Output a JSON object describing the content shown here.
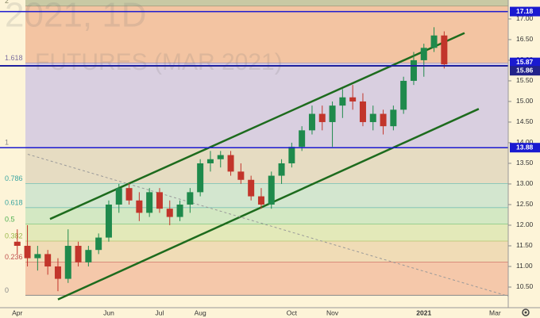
{
  "chart_data": {
    "type": "candlestick",
    "title": "2021, 1D",
    "subtitle": "FUTURES (MAR 2021)",
    "categories": [
      "Apr",
      null,
      null,
      null,
      null,
      null,
      null,
      null,
      null,
      "Jun",
      null,
      null,
      null,
      null,
      "Jul",
      null,
      null,
      null,
      "Aug",
      null,
      null,
      null,
      null,
      null,
      null,
      null,
      null,
      "Oct",
      null,
      null,
      null,
      "Nov",
      null,
      null,
      null,
      null,
      null,
      null,
      null,
      null,
      "2021",
      null,
      null,
      null,
      null,
      null,
      null,
      "Mar"
    ],
    "label_index": [
      1,
      9,
      14,
      18,
      27,
      31,
      40,
      47
    ],
    "xlim": [
      -1.7,
      48.3
    ],
    "ylim": [
      10.0,
      17.46
    ],
    "yticks": [
      {
        "value": 10.5,
        "label": "10.50"
      },
      {
        "value": 11.0,
        "label": "11.00"
      },
      {
        "value": 11.5,
        "label": "11.50"
      },
      {
        "value": 12.0,
        "label": "12.00"
      },
      {
        "value": 12.5,
        "label": "12.50"
      },
      {
        "value": 13.0,
        "label": "13.00"
      },
      {
        "value": 13.5,
        "label": "13.50"
      },
      {
        "value": 14.0,
        "label": "14.00"
      },
      {
        "value": 14.5,
        "label": "14.50"
      },
      {
        "value": 15.0,
        "label": "15.00"
      },
      {
        "value": 15.5,
        "label": "15.50"
      },
      {
        "value": 16.0,
        "label": "16.00"
      },
      {
        "value": 16.5,
        "label": "16.50"
      },
      {
        "value": 17.0,
        "label": "17.00"
      }
    ],
    "up_color": "#1f8a4c",
    "down_color": "#c2352b",
    "open": [
      11.6,
      11.5,
      11.2,
      11.3,
      11.0,
      10.7,
      11.5,
      11.1,
      11.4,
      11.7,
      12.5,
      12.9,
      12.6,
      12.3,
      12.8,
      12.4,
      12.2,
      12.5,
      12.8,
      13.5,
      13.6,
      13.7,
      13.3,
      13.1,
      12.7,
      12.5,
      13.2,
      13.5,
      13.9,
      14.3,
      14.7,
      14.5,
      14.9,
      15.1,
      15.0,
      14.5,
      14.7,
      14.4,
      14.8,
      15.5,
      16.0,
      16.3,
      16.6,
      null,
      null,
      null,
      null,
      null
    ],
    "high": [
      11.9,
      12.0,
      11.5,
      11.4,
      11.2,
      11.9,
      11.6,
      11.5,
      11.8,
      12.6,
      13.0,
      13.0,
      12.8,
      12.9,
      12.9,
      12.6,
      12.6,
      12.9,
      13.6,
      13.8,
      13.8,
      13.8,
      13.5,
      13.2,
      12.9,
      13.3,
      13.6,
      14.0,
      14.4,
      14.9,
      14.9,
      15.0,
      15.3,
      15.4,
      15.2,
      14.9,
      14.8,
      14.9,
      15.6,
      16.2,
      16.4,
      16.8,
      16.7,
      null,
      null,
      null,
      null,
      null
    ],
    "low": [
      11.3,
      11.0,
      10.9,
      10.8,
      10.4,
      10.6,
      11.0,
      11.0,
      11.3,
      11.6,
      12.3,
      12.5,
      12.1,
      12.2,
      12.3,
      12.0,
      12.1,
      12.3,
      12.7,
      13.3,
      13.4,
      13.2,
      13.0,
      12.6,
      12.4,
      12.4,
      13.0,
      13.4,
      13.8,
      14.2,
      14.3,
      13.9,
      14.6,
      14.8,
      14.4,
      14.3,
      14.2,
      14.3,
      14.7,
      15.4,
      15.6,
      16.2,
      15.8,
      null,
      null,
      null,
      null,
      null
    ],
    "close": [
      11.5,
      11.2,
      11.3,
      11.0,
      10.7,
      11.5,
      11.1,
      11.4,
      11.7,
      12.5,
      12.9,
      12.6,
      12.3,
      12.8,
      12.4,
      12.2,
      12.5,
      12.8,
      13.5,
      13.6,
      13.7,
      13.3,
      13.1,
      12.7,
      12.5,
      13.2,
      13.5,
      13.9,
      14.3,
      14.7,
      14.5,
      14.9,
      15.1,
      15.0,
      14.5,
      14.7,
      14.4,
      14.8,
      15.5,
      16.0,
      16.3,
      16.6,
      15.9,
      null,
      null,
      null,
      null,
      null
    ],
    "fib_levels": [
      {
        "ratio": 2,
        "price": 17.31,
        "color": "#8a8a6a",
        "fill": "#c8c9a4"
      },
      {
        "ratio": 1.618,
        "price": 15.93,
        "color": "#7d6fa0",
        "fill": "#f3c4a2"
      },
      {
        "ratio": 1,
        "price": 13.88,
        "color": "#888888",
        "fill": "#d9cfe0"
      },
      {
        "ratio": 0.786,
        "price": 13.01,
        "color": "#3aa5a0",
        "fill": "#e6dcc2"
      },
      {
        "ratio": 0.618,
        "price": 12.42,
        "color": "#3aa5a0",
        "fill": "#d3e6cf"
      },
      {
        "ratio": 0.5,
        "price": 12.02,
        "color": "#4caf50",
        "fill": "#d3e8c3"
      },
      {
        "ratio": 0.382,
        "price": 11.61,
        "color": "#9ab84a",
        "fill": "#e3e9b9"
      },
      {
        "ratio": 0.236,
        "price": 11.1,
        "color": "#c0504d",
        "fill": "#f0dcb6"
      },
      {
        "ratio": 0,
        "price": 10.3,
        "color": "#888888",
        "fill": "#f5c8aa"
      }
    ],
    "hlines": [
      {
        "price": 17.18,
        "color": "#1a1ad0"
      },
      {
        "price": 15.87,
        "color": "#1a1ad0"
      },
      {
        "price": 15.86,
        "color": "#23238a"
      },
      {
        "price": 13.88,
        "color": "#1a1ad0"
      }
    ],
    "trendlines": [
      {
        "color": "#1d6b1d",
        "start": [
          3.22,
          12.15
        ],
        "end": [
          44.0,
          16.66
        ]
      },
      {
        "color": "#1d6b1d",
        "start": [
          4.0,
          10.2
        ],
        "end": [
          45.4,
          14.82
        ]
      },
      {
        "color": "#999999",
        "dashed": true,
        "start": [
          1.03,
          13.72
        ],
        "end": [
          48.3,
          10.28
        ]
      }
    ]
  }
}
